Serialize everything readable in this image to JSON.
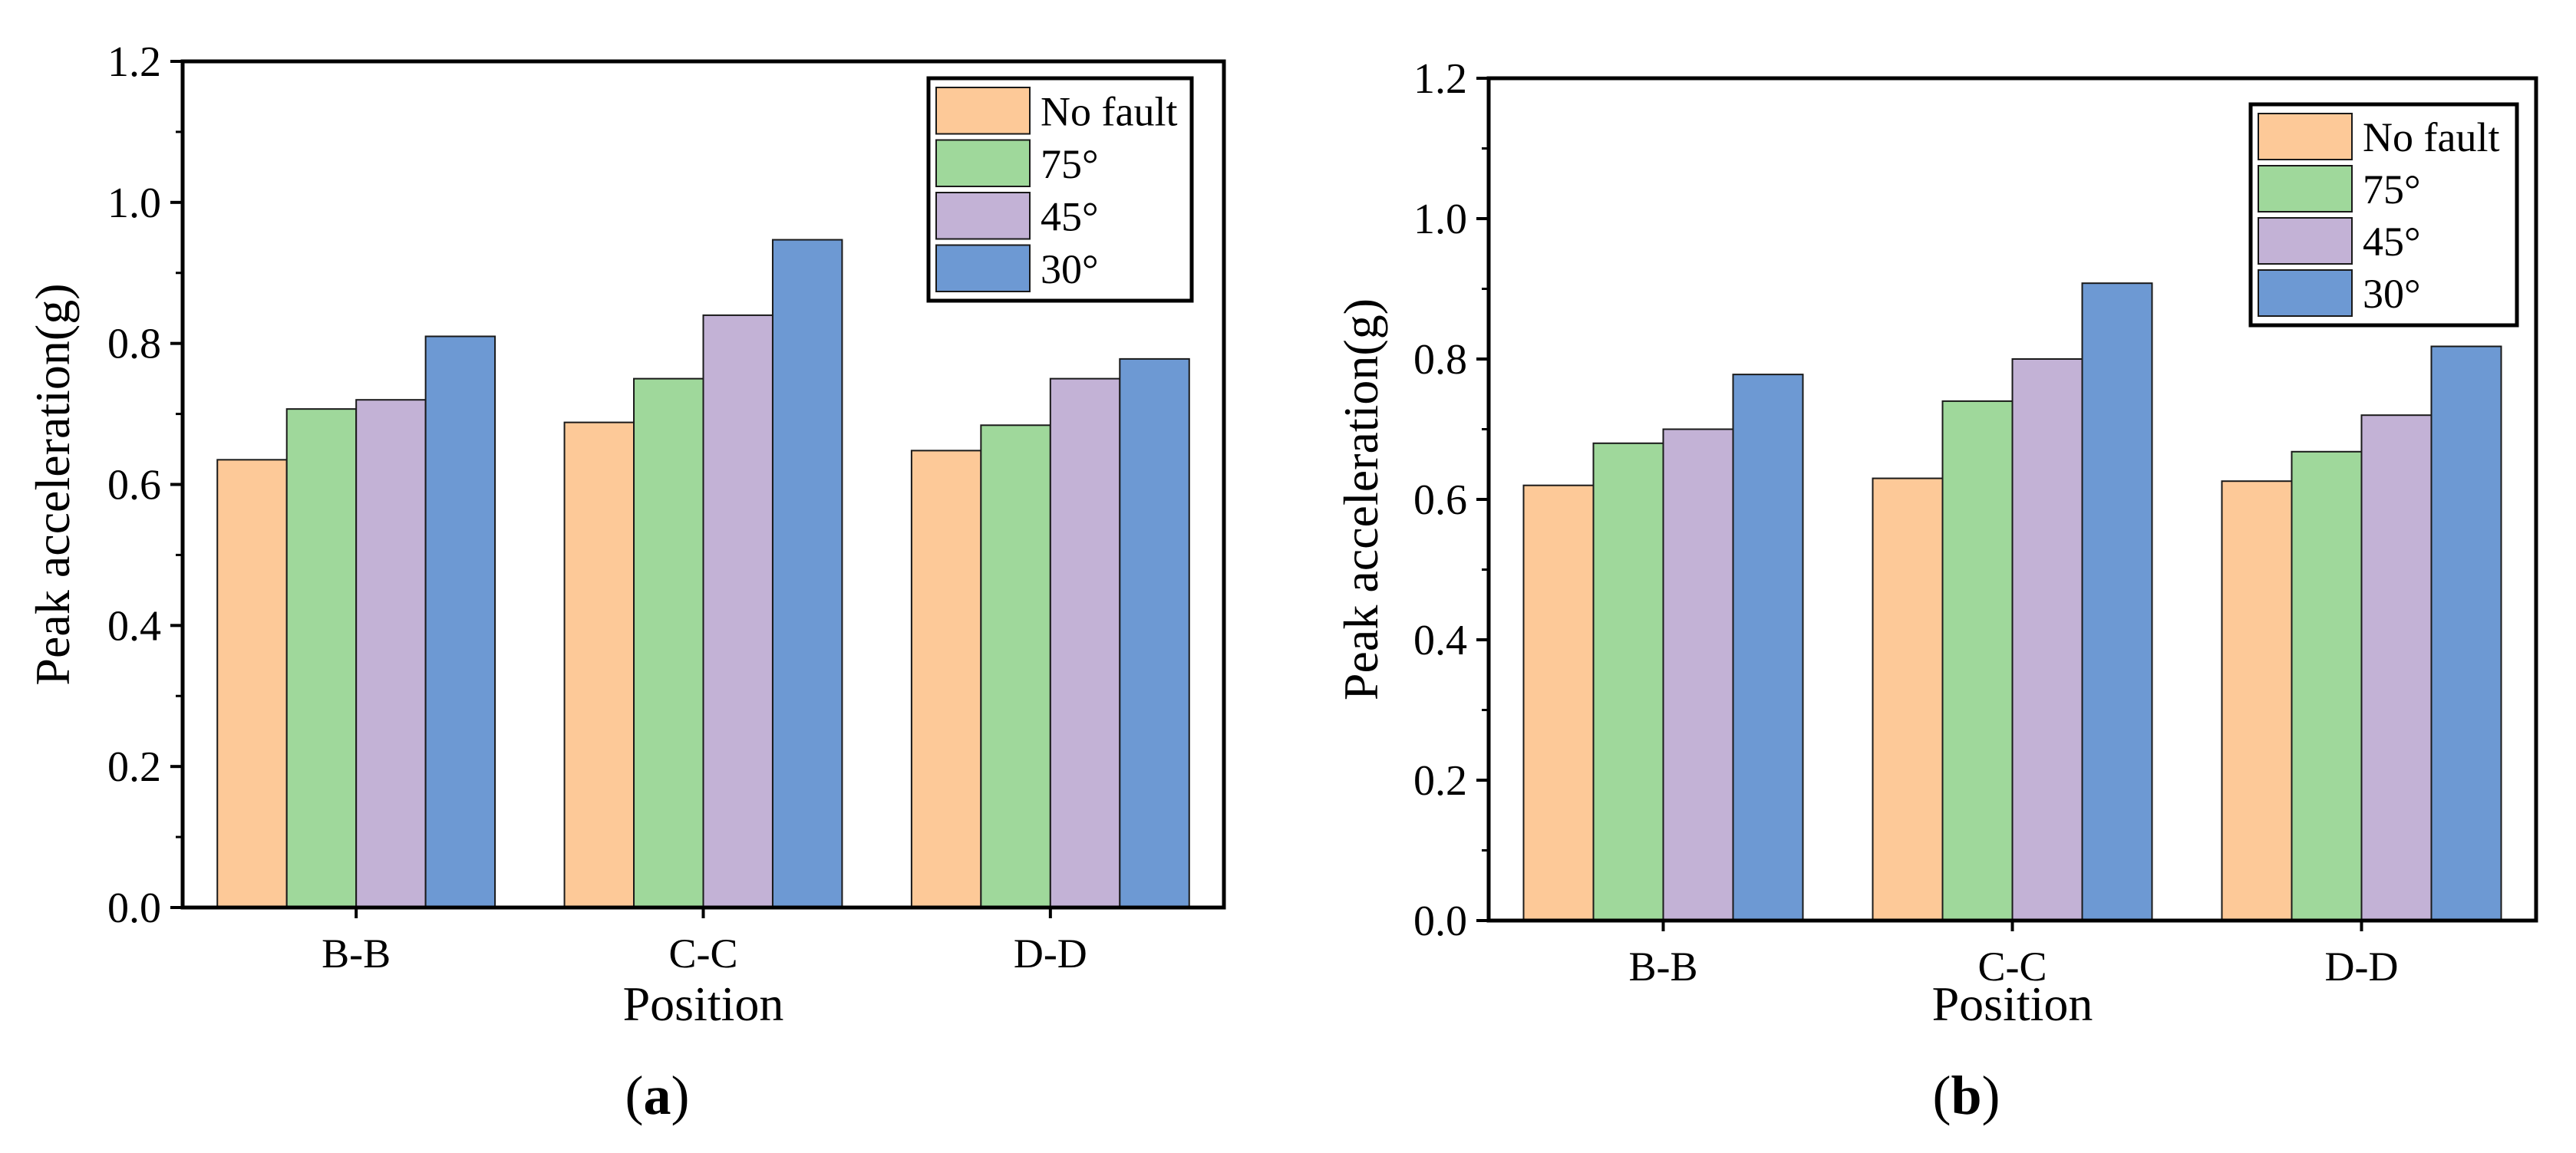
{
  "chart_data": [
    {
      "type": "bar",
      "panel_label": "a",
      "title": "",
      "xlabel": "Position",
      "ylabel": "Peak acceleration(g)",
      "categories": [
        "B-B",
        "C-C",
        "D-D"
      ],
      "ylim": [
        0,
        1.2
      ],
      "yticks": [
        "0.0",
        "0.2",
        "0.4",
        "0.6",
        "0.8",
        "1.0",
        "1.2"
      ],
      "grid": false,
      "legend_position": "top-right",
      "series": [
        {
          "name": "No fault",
          "color": "#FDC998",
          "values": [
            0.635,
            0.688,
            0.648
          ]
        },
        {
          "name": "75°",
          "color": "#9FD89B",
          "values": [
            0.707,
            0.75,
            0.684
          ]
        },
        {
          "name": "45°",
          "color": "#C3B2D6",
          "values": [
            0.72,
            0.84,
            0.75
          ]
        },
        {
          "name": "30°",
          "color": "#6D99D3",
          "values": [
            0.81,
            0.947,
            0.778
          ]
        }
      ]
    },
    {
      "type": "bar",
      "panel_label": "b",
      "title": "",
      "xlabel": "Position",
      "ylabel": "Peak acceleration(g)",
      "categories": [
        "B-B",
        "C-C",
        "D-D"
      ],
      "ylim": [
        0,
        1.2
      ],
      "yticks": [
        "0.0",
        "0.2",
        "0.4",
        "0.6",
        "0.8",
        "1.0",
        "1.2"
      ],
      "grid": false,
      "legend_position": "top-right",
      "series": [
        {
          "name": "No fault",
          "color": "#FDC998",
          "values": [
            0.62,
            0.63,
            0.626
          ]
        },
        {
          "name": "75°",
          "color": "#9FD89B",
          "values": [
            0.68,
            0.74,
            0.668
          ]
        },
        {
          "name": "45°",
          "color": "#C3B2D6",
          "values": [
            0.7,
            0.8,
            0.72
          ]
        },
        {
          "name": "30°",
          "color": "#6D99D3",
          "values": [
            0.778,
            0.908,
            0.818
          ]
        }
      ]
    }
  ]
}
